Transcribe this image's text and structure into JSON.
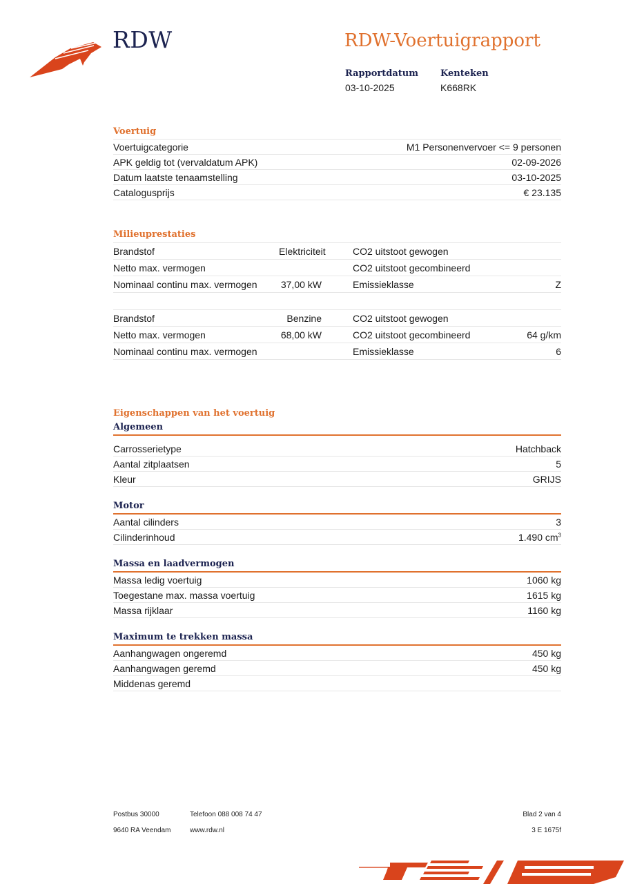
{
  "header": {
    "brand": "RDW",
    "title": "RDW-Voertuigrapport",
    "report_date_label": "Rapportdatum",
    "report_date": "03-10-2025",
    "plate_label": "Kenteken",
    "plate": "K668RK"
  },
  "voertuig": {
    "title": "Voertuig",
    "rows": [
      {
        "label": "Voertuigcategorie",
        "value": "M1 Personenvervoer <= 9 personen"
      },
      {
        "label": "APK geldig tot (vervaldatum APK)",
        "value": "02-09-2026"
      },
      {
        "label": "Datum laatste tenaamstelling",
        "value": "03-10-2025"
      },
      {
        "label": "Catalogusprijs",
        "value": "€ 23.135"
      }
    ]
  },
  "milieu": {
    "title": "Milieuprestaties",
    "blocks": [
      [
        [
          "Brandstof",
          "Elektriciteit",
          "CO2 uitstoot gewogen",
          ""
        ],
        [
          "Netto max. vermogen",
          "",
          "CO2 uitstoot gecombineerd",
          ""
        ],
        [
          "Nominaal continu max. vermogen",
          "37,00 kW",
          "Emissieklasse",
          "Z"
        ]
      ],
      [
        [
          "Brandstof",
          "Benzine",
          "CO2 uitstoot gewogen",
          ""
        ],
        [
          "Netto max. vermogen",
          "68,00 kW",
          "CO2 uitstoot gecombineerd",
          "64 g/km"
        ],
        [
          "Nominaal continu max. vermogen",
          "",
          "Emissieklasse",
          "6"
        ]
      ]
    ]
  },
  "eigenschappen": {
    "title": "Eigenschappen van het voertuig",
    "groups": [
      {
        "title": "Algemeen",
        "rows": [
          {
            "label": "Carrosserietype",
            "value": "Hatchback"
          },
          {
            "label": "Aantal zitplaatsen",
            "value": "5"
          },
          {
            "label": "Kleur",
            "value": "GRIJS"
          }
        ]
      },
      {
        "title": "Motor",
        "rows": [
          {
            "label": "Aantal cilinders",
            "value": "3"
          },
          {
            "label": "Cilinderinhoud",
            "value": "1.490 cm",
            "sup": "3"
          }
        ]
      },
      {
        "title": "Massa en laadvermogen",
        "rows": [
          {
            "label": "Massa ledig voertuig",
            "value": "1060 kg"
          },
          {
            "label": "Toegestane max. massa voertuig",
            "value": "1615 kg"
          },
          {
            "label": "Massa rijklaar",
            "value": "1160 kg"
          }
        ]
      },
      {
        "title": "Maximum te trekken massa",
        "rows": [
          {
            "label": "Aanhangwagen ongeremd",
            "value": "450 kg"
          },
          {
            "label": "Aanhangwagen geremd",
            "value": "450 kg"
          },
          {
            "label": "Middenas geremd",
            "value": ""
          }
        ]
      }
    ]
  },
  "footer": {
    "postbus": "Postbus 30000",
    "phone": "Telefoon 088 008 74 47",
    "page": "Blad 2 van 4",
    "city": "9640 RA Veendam",
    "web": "www.rdw.nl",
    "code": "3 E 1675f"
  },
  "colors": {
    "accent": "#e0712e",
    "navy": "#1c2350",
    "logo": "#d9441c"
  }
}
